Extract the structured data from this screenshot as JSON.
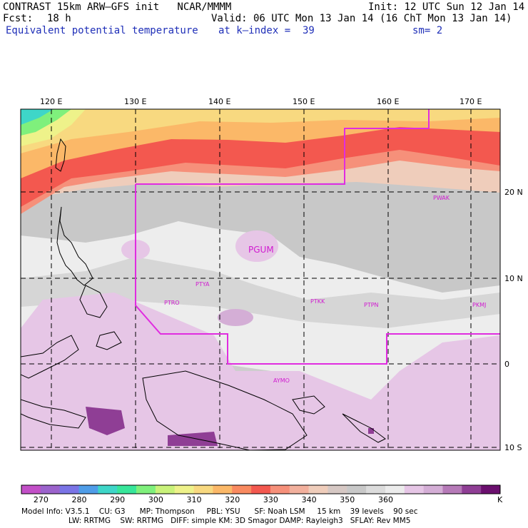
{
  "header": {
    "model_line": "CONTRAST 15km ARW–GFS init   NCAR/MMMM",
    "init": "Init: 12 UTC Sun 12 Jan 14",
    "fcst_label": "Fcst:",
    "fcst_value": "18 h",
    "valid": "Valid: 06 UTC Mon 13 Jan 14 (16 ChT Mon 13 Jan 14)",
    "field": "Equivalent potential temperature",
    "level": "at k–index =  39",
    "smoothing": "sm= 2"
  },
  "map": {
    "lon_labels": [
      "120 E",
      "130 E",
      "140 E",
      "150 E",
      "160 E",
      "170 E"
    ],
    "lat_labels": [
      "20 N",
      "10 N",
      "0",
      "10 S"
    ],
    "stations": [
      "PGUM",
      "PTYA",
      "PTRO",
      "PTKK",
      "PTPN",
      "PKMJ",
      "PWAK",
      "AYMO"
    ]
  },
  "colorbar": {
    "ticks": [
      "270",
      "280",
      "290",
      "300",
      "310",
      "320",
      "330",
      "340",
      "350",
      "360"
    ],
    "unit": "K",
    "colors": [
      "#c24fc7",
      "#9b63cc",
      "#7a74e6",
      "#4f9de8",
      "#3ed6c8",
      "#37e69a",
      "#7ff07c",
      "#c9f27a",
      "#eef28a",
      "#f8d980",
      "#fbb868",
      "#f98a60",
      "#f3584f",
      "#f6907a",
      "#f2b09d",
      "#efcdbb",
      "#d6c8c4",
      "#c8c8c8",
      "#dcdcdc",
      "#ececec",
      "#e6c6e6",
      "#d4aed6",
      "#b67ab8",
      "#8f3e95",
      "#6b0f6e"
    ]
  },
  "model_info": {
    "line1": "Model Info: V3.5.1    CU: G3      MP: Thompson     PBL: YSU      SF: Noah LSM     15 km    39 levels    90 sec",
    "line2": "LW: RRTMG    SW: RRTMG   DIFF: simple KM: 3D Smagor DAMP: Rayleigh3   SFLAY: Rev MM5"
  }
}
